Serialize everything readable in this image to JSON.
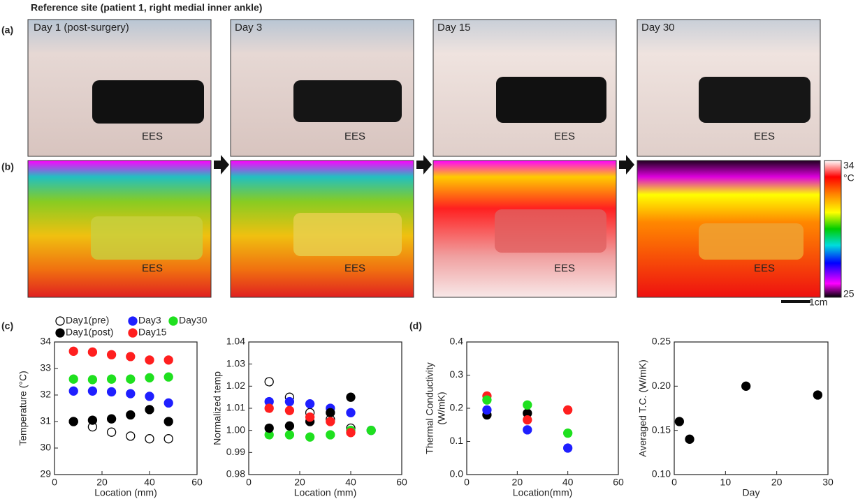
{
  "title": "Reference site (patient  1, right medial inner ankle)",
  "panels": {
    "a": "(a)",
    "b": "(b)",
    "c": "(c)",
    "d": "(d)"
  },
  "photos": [
    {
      "label": "Day 1 (post-surgery)",
      "device": "EES"
    },
    {
      "label": "Day 3",
      "device": "EES"
    },
    {
      "label": "Day 15",
      "device": "EES"
    },
    {
      "label": "Day 30",
      "device": "EES"
    }
  ],
  "thermal_label": "EES",
  "colorbar": {
    "max": 34,
    "unit": "°C",
    "min": 25
  },
  "scale_bar": "1cm",
  "chart_data": [
    {
      "type": "scatter",
      "xlabel": "Location (mm)",
      "ylabel": "Temperature (°C)",
      "xlim": [
        0,
        60
      ],
      "xticks": [
        0,
        20,
        40,
        60
      ],
      "ylim": [
        29,
        34
      ],
      "yticks": [
        29,
        30,
        31,
        32,
        33,
        34
      ],
      "legend": true,
      "series": [
        {
          "name": "Day1(pre)",
          "color": "#000000",
          "filled": false,
          "x": [
            8,
            16,
            24,
            32,
            40,
            48
          ],
          "values": [
            31.0,
            30.8,
            30.6,
            30.45,
            30.35,
            30.35
          ]
        },
        {
          "name": "Day3",
          "color": "#1f1fff",
          "filled": true,
          "x": [
            8,
            16,
            24,
            32,
            40,
            48
          ],
          "values": [
            32.15,
            32.15,
            32.12,
            32.05,
            31.95,
            31.7
          ]
        },
        {
          "name": "Day30",
          "color": "#1fe01f",
          "filled": true,
          "x": [
            8,
            16,
            24,
            32,
            40,
            48
          ],
          "values": [
            32.6,
            32.58,
            32.6,
            32.6,
            32.65,
            32.68
          ]
        },
        {
          "name": "Day1(post)",
          "color": "#000000",
          "filled": true,
          "x": [
            8,
            16,
            24,
            32,
            40,
            48
          ],
          "values": [
            31.0,
            31.05,
            31.1,
            31.25,
            31.45,
            31.0
          ]
        },
        {
          "name": "Day15",
          "color": "#ff1f1f",
          "filled": true,
          "x": [
            8,
            16,
            24,
            32,
            40,
            48
          ],
          "values": [
            33.65,
            33.62,
            33.52,
            33.45,
            33.32,
            33.32
          ]
        }
      ]
    },
    {
      "type": "scatter",
      "xlabel": "Location (mm)",
      "ylabel": "Normalized temp",
      "xlim": [
        0,
        60
      ],
      "xticks": [
        0,
        20,
        40,
        60
      ],
      "ylim": [
        0.98,
        1.04
      ],
      "yticks": [
        0.98,
        0.99,
        {
          "value": 1,
          "label": "1.00"
        },
        1.01,
        1.02,
        1.03,
        1.04
      ],
      "series": [
        {
          "color": "#000000",
          "filled": false,
          "x": [
            8,
            16,
            24,
            32,
            40
          ],
          "values": [
            1.022,
            1.015,
            1.008,
            1.005,
            1.001
          ]
        },
        {
          "color": "#1f1fff",
          "filled": true,
          "x": [
            8,
            16,
            24,
            32,
            40,
            48
          ],
          "values": [
            1.013,
            1.013,
            1.012,
            1.01,
            1.008,
            1.0
          ]
        },
        {
          "color": "#1fe01f",
          "filled": true,
          "x": [
            8,
            16,
            24,
            32,
            40,
            48
          ],
          "values": [
            0.998,
            0.998,
            0.997,
            0.998,
            1.0,
            1.0
          ]
        },
        {
          "color": "#000000",
          "filled": true,
          "x": [
            8,
            16,
            24,
            32,
            40
          ],
          "values": [
            1.001,
            1.002,
            1.004,
            1.008,
            1.015
          ]
        },
        {
          "color": "#ff1f1f",
          "filled": true,
          "x": [
            8,
            16,
            24,
            32,
            40
          ],
          "values": [
            1.01,
            1.009,
            1.006,
            1.004,
            0.999
          ]
        }
      ]
    },
    {
      "type": "scatter",
      "xlabel": "Location(mm)",
      "ylabel": [
        "Thermal Conductivity",
        "(W/mK)"
      ],
      "xlim": [
        0,
        60
      ],
      "xticks": [
        0,
        20,
        40,
        60
      ],
      "ylim": [
        0,
        0.4
      ],
      "yticks": [
        {
          "value": 0,
          "label": "0.0"
        },
        0.1,
        0.2,
        0.3,
        0.4
      ],
      "series": [
        {
          "color": "#000000",
          "filled": true,
          "x": [
            8,
            24
          ],
          "values": [
            0.18,
            0.185
          ]
        },
        {
          "color": "#1f1fff",
          "filled": true,
          "x": [
            8,
            24,
            40
          ],
          "values": [
            0.195,
            0.135,
            0.08
          ]
        },
        {
          "color": "#ff1f1f",
          "filled": true,
          "x": [
            8,
            24,
            40
          ],
          "values": [
            0.237,
            0.165,
            0.195
          ]
        },
        {
          "color": "#1fe01f",
          "filled": true,
          "x": [
            8,
            24,
            40
          ],
          "values": [
            0.225,
            0.21,
            0.125
          ]
        }
      ]
    },
    {
      "type": "scatter",
      "xlabel": "Day",
      "ylabel": "Averaged T.C. (W/mK)",
      "xlim": [
        0,
        30
      ],
      "xticks": [
        0,
        10,
        20,
        30
      ],
      "ylim": [
        0.1,
        0.25
      ],
      "yticks": [
        {
          "value": 0.1,
          "label": "0.10"
        },
        0.15,
        {
          "value": 0.2,
          "label": "0.20"
        },
        0.25
      ],
      "series": [
        {
          "color": "#000000",
          "filled": true,
          "x": [
            1,
            3,
            14,
            28
          ],
          "values": [
            0.16,
            0.14,
            0.2,
            0.19
          ]
        }
      ]
    }
  ]
}
